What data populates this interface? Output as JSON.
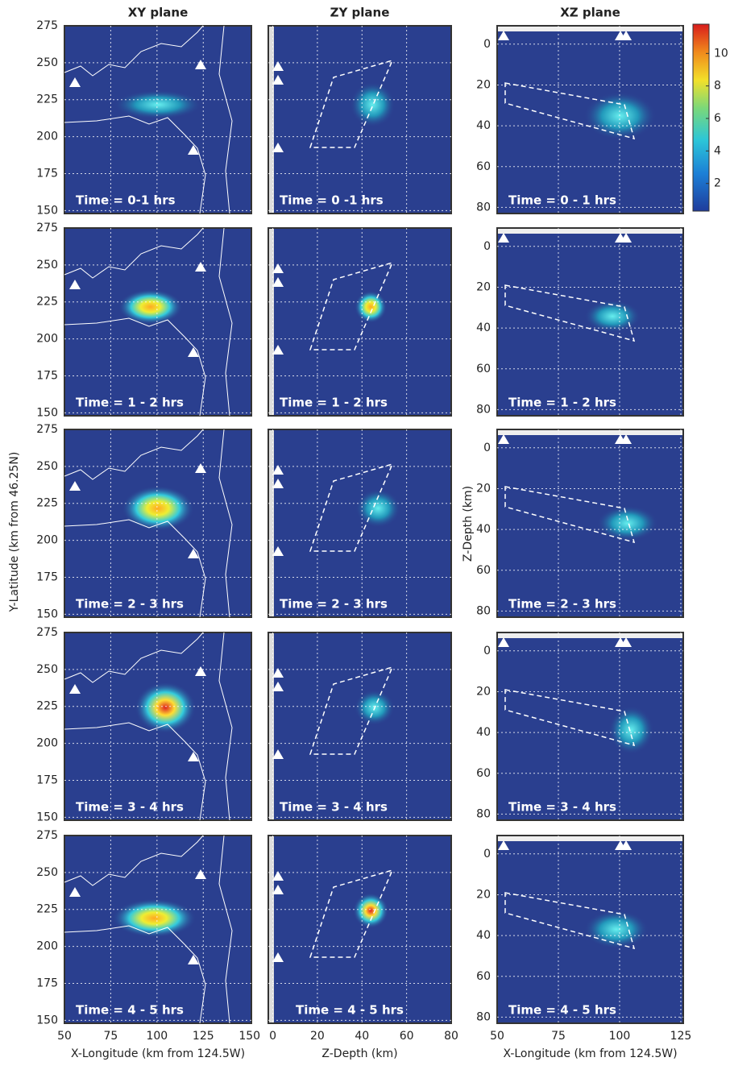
{
  "columns": [
    {
      "title": "XY plane",
      "xlabel": "X-Longitude (km from 124.5W)",
      "ylabel": "Y-Latitude (km from 46.25N)",
      "xlim": [
        50,
        151
      ],
      "xticks": [
        50,
        75,
        100,
        125,
        150
      ],
      "ylim": [
        148,
        275
      ],
      "yticks": [
        150,
        175,
        200,
        225,
        250,
        275
      ]
    },
    {
      "title": "ZY plane",
      "xlabel": "Z-Depth (km)",
      "xlim": [
        -2,
        80
      ],
      "xticks": [
        0,
        20,
        40,
        60,
        80
      ]
    },
    {
      "title": "XZ plane",
      "xlabel": "X-Longitude (km from 124.5W)",
      "ylabel": "Z-Depth (km)",
      "xlim": [
        50,
        126
      ],
      "xticks": [
        50,
        75,
        100,
        125
      ],
      "ylim": [
        83,
        -9
      ],
      "yticks": [
        0,
        20,
        40,
        60,
        80
      ]
    }
  ],
  "rows": [
    [
      "Time = 0-1 hrs",
      "Time = 0 -1 hrs",
      "Time = 0 - 1 hrs"
    ],
    [
      "Time = 1 - 2 hrs",
      "Time = 1 - 2 hrs",
      "Time = 1 - 2 hrs"
    ],
    [
      "Time = 2 - 3 hrs",
      "Time = 2 - 3 hrs",
      "Time = 2 - 3 hrs"
    ],
    [
      "Time = 3 - 4 hrs",
      "Time = 3 - 4 hrs",
      "Time = 3 - 4 hrs"
    ],
    [
      "Time = 4 - 5 hrs",
      "Time = 4 - 5 hrs",
      "Time = 4 - 5 hrs"
    ]
  ],
  "colorbar": {
    "lim": [
      0.3,
      11.8
    ],
    "ticks": [
      2,
      4,
      6,
      8,
      10
    ]
  }
}
